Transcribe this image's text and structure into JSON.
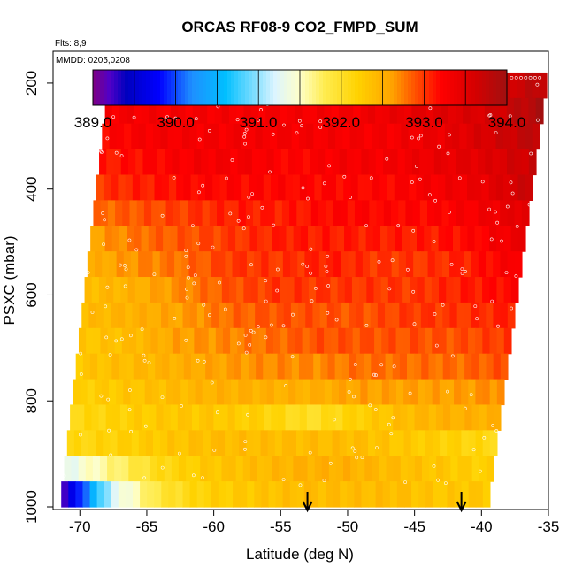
{
  "chart_data": {
    "type": "heatmap",
    "title": "ORCAS RF08-9 CO2_FMPD_SUM",
    "subtitle_flights": "Flts: 8,9",
    "subtitle_dates": "MMDD: 0205,0208",
    "xlabel": "Latitude (deg N)",
    "ylabel": "PSXC (mbar)",
    "xlim": [
      -72,
      -35
    ],
    "ylim": [
      1005,
      140
    ],
    "x_ticks": [
      -70,
      -65,
      -60,
      -55,
      -50,
      -45,
      -40,
      -35
    ],
    "y_ticks": [
      200,
      400,
      600,
      800,
      1000
    ],
    "colorbar": {
      "range": [
        389.0,
        394.0
      ],
      "ticks": [
        389.0,
        390.0,
        391.0,
        392.0,
        393.0,
        394.0
      ],
      "tick_labels": [
        "389.0",
        "390.0",
        "391.0",
        "392.0",
        "393.0",
        "394.0"
      ],
      "divisions": [
        389.0,
        389.5,
        390.0,
        390.5,
        391.0,
        391.5,
        392.0,
        392.5,
        393.0,
        393.5,
        394.0
      ],
      "palette": [
        "#800080",
        "#0000ff",
        "#1e90ff",
        "#00bfff",
        "#e0f8ff",
        "#ffff80",
        "#ffd700",
        "#ffa500",
        "#ff4500",
        "#ff0000",
        "#b00000"
      ]
    },
    "pressure_bands": [
      {
        "p": 190,
        "values": [
          394.0,
          393.8,
          393.6,
          393.4,
          393.3,
          393.3,
          393.4,
          393.5,
          393.6,
          393.8
        ]
      },
      {
        "p": 235,
        "values": [
          393.3,
          393.3,
          393.3,
          393.3,
          393.3,
          393.3,
          393.4,
          393.5,
          393.6,
          393.9
        ]
      },
      {
        "p": 285,
        "values": [
          393.2,
          393.3,
          393.3,
          393.3,
          393.3,
          393.3,
          393.3,
          393.4,
          393.6,
          393.8
        ]
      },
      {
        "p": 335,
        "values": [
          393.1,
          393.2,
          393.3,
          393.3,
          393.2,
          393.3,
          393.3,
          393.4,
          393.5,
          393.7
        ]
      },
      {
        "p": 385,
        "values": [
          393.0,
          393.1,
          393.2,
          393.2,
          393.2,
          393.2,
          393.2,
          393.3,
          393.4,
          393.7
        ]
      },
      {
        "p": 440,
        "values": [
          392.8,
          392.9,
          393.0,
          393.1,
          393.1,
          393.2,
          393.2,
          393.2,
          393.3,
          393.5
        ]
      },
      {
        "p": 495,
        "values": [
          392.6,
          392.8,
          392.9,
          393.0,
          393.1,
          393.1,
          393.1,
          393.1,
          393.2,
          393.4
        ]
      },
      {
        "p": 545,
        "values": [
          392.5,
          392.7,
          392.8,
          393.0,
          393.0,
          393.1,
          393.0,
          393.0,
          393.1,
          393.3
        ]
      },
      {
        "p": 595,
        "values": [
          392.4,
          392.5,
          392.7,
          392.9,
          393.0,
          393.0,
          393.0,
          393.0,
          393.1,
          393.2
        ]
      },
      {
        "p": 645,
        "values": [
          392.4,
          392.5,
          392.6,
          392.8,
          392.9,
          392.9,
          392.9,
          393.0,
          393.0,
          393.1
        ]
      },
      {
        "p": 695,
        "values": [
          392.3,
          392.4,
          392.6,
          392.7,
          392.8,
          392.9,
          392.9,
          392.9,
          392.9,
          393.0
        ]
      },
      {
        "p": 745,
        "values": [
          392.3,
          392.4,
          392.5,
          392.6,
          392.7,
          392.7,
          392.8,
          392.8,
          392.8,
          392.9
        ]
      },
      {
        "p": 795,
        "values": [
          392.2,
          392.3,
          392.4,
          392.5,
          392.5,
          392.5,
          392.6,
          392.6,
          392.6,
          392.7
        ]
      },
      {
        "p": 845,
        "values": [
          392.1,
          392.2,
          392.3,
          392.3,
          392.2,
          392.0,
          392.2,
          392.4,
          392.5,
          392.5
        ]
      },
      {
        "p": 895,
        "values": [
          392.1,
          392.2,
          392.3,
          392.4,
          392.4,
          392.4,
          392.4,
          392.3,
          392.2,
          392.1
        ]
      },
      {
        "p": 945,
        "values": [
          391.3,
          391.7,
          392.1,
          392.3,
          392.4,
          392.5,
          392.5,
          392.4,
          392.3,
          392.2
        ]
      },
      {
        "p": 990,
        "values": [
          389.3,
          391.2,
          391.9,
          392.2,
          392.3,
          392.4,
          392.4,
          392.4,
          392.3,
          392.3
        ]
      }
    ],
    "arrows_latitude": [
      -53,
      -41.5
    ]
  }
}
